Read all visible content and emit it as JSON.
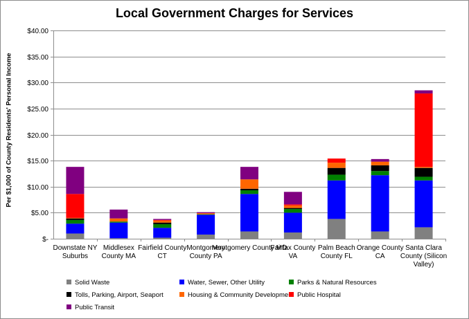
{
  "chart_data": {
    "type": "bar",
    "stacked": true,
    "title": "Local Government Charges for Services",
    "ylabel": "Per $1,000 of County Residents' Personal Income",
    "xlabel": "",
    "ylim": [
      0,
      40
    ],
    "yticks": [
      "$-",
      "$5.00",
      "$10.00",
      "$15.00",
      "$20.00",
      "$25.00",
      "$30.00",
      "$35.00",
      "$40.00"
    ],
    "ytick_values": [
      0,
      5,
      10,
      15,
      20,
      25,
      30,
      35,
      40
    ],
    "grid": true,
    "legend_position": "bottom",
    "categories": [
      [
        "Downstate NY",
        "Suburbs"
      ],
      [
        "Middlesex",
        "County MA"
      ],
      [
        "Fairfield County",
        "CT"
      ],
      [
        "Montgomery",
        "County PA"
      ],
      [
        "Montgomery County MD"
      ],
      [
        "Fairfax County",
        "VA"
      ],
      [
        "Palm Beach",
        "County FL"
      ],
      [
        "Orange County",
        "CA"
      ],
      [
        "Santa Clara",
        "County (Silicon",
        "Valley)"
      ]
    ],
    "series": [
      {
        "name": "Solid Waste",
        "color": "#808080",
        "values": [
          1.0,
          0.1,
          0.2,
          0.8,
          1.4,
          1.2,
          3.8,
          1.4,
          2.2
        ]
      },
      {
        "name": "Water, Sewer, Other Utility",
        "color": "#0000ff",
        "values": [
          1.9,
          3.0,
          1.9,
          3.8,
          7.2,
          3.8,
          7.4,
          10.8,
          9.0
        ]
      },
      {
        "name": "Parks & Natural Resources",
        "color": "#008000",
        "values": [
          0.7,
          0.2,
          0.7,
          0.1,
          0.7,
          0.7,
          1.1,
          0.8,
          0.7
        ]
      },
      {
        "name": "Tolls, Parking, Airport, Seaport",
        "color": "#000000",
        "values": [
          0.3,
          0.0,
          0.3,
          0.0,
          0.3,
          0.2,
          1.3,
          1.1,
          1.7
        ]
      },
      {
        "name": "Housing & Community Development",
        "color": "#ff6600",
        "values": [
          0.1,
          0.6,
          0.4,
          0.2,
          1.8,
          0.5,
          1.0,
          0.7,
          0.2
        ]
      },
      {
        "name": "Public Hospital",
        "color": "#ff0000",
        "values": [
          4.6,
          0.0,
          0.1,
          0.0,
          0.0,
          0.2,
          0.8,
          0.0,
          14.1
        ]
      },
      {
        "name": "Public Transit",
        "color": "#800080",
        "values": [
          5.2,
          1.7,
          0.2,
          0.2,
          2.4,
          2.4,
          0.0,
          0.5,
          0.6
        ]
      }
    ]
  }
}
